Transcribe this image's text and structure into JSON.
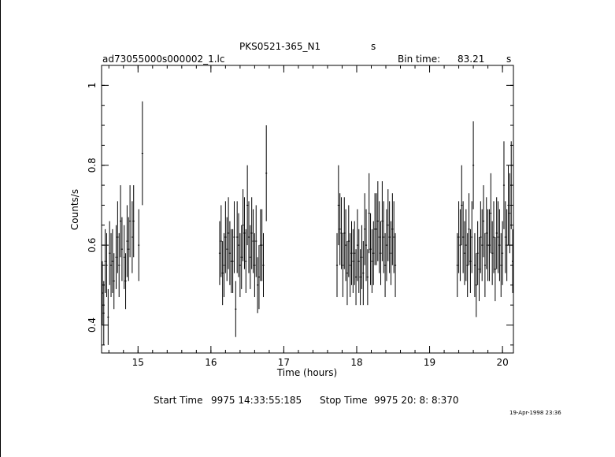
{
  "header": {
    "source": "PKS0521-365_N1",
    "units_flag": "s",
    "file": "ad73055000s000002_1.lc",
    "bin_label": "Bin time:",
    "bin_value": "83.21",
    "bin_unit": "s"
  },
  "footer": {
    "start_label": "Start Time",
    "start_value": "9975 14:33:55:185",
    "stop_label": "Stop Time",
    "stop_value": "9975 20: 8: 8:370",
    "stamp": "19-Apr-1998 23:36"
  },
  "chart_data": {
    "type": "scatter",
    "xlabel": "Time (hours)",
    "ylabel": "Counts/s",
    "xlim": [
      14.5,
      20.15
    ],
    "ylim": [
      0.33,
      1.05
    ],
    "xticks": [
      15,
      16,
      17,
      18,
      19,
      20
    ],
    "yticks": [
      0.4,
      0.6,
      0.8,
      1
    ],
    "grid": false,
    "series": [
      {
        "x": [
          14.51,
          14.53,
          14.55,
          14.57,
          14.59,
          14.61,
          14.63,
          14.65,
          14.67,
          14.7,
          14.72,
          14.74,
          14.76,
          14.78,
          14.81,
          14.83,
          14.85,
          14.87,
          14.89,
          14.92,
          14.94,
          15.01,
          15.06
        ],
        "y": [
          0.48,
          0.43,
          0.56,
          0.55,
          0.42,
          0.58,
          0.55,
          0.56,
          0.51,
          0.57,
          0.62,
          0.55,
          0.66,
          0.59,
          0.57,
          0.51,
          0.61,
          0.59,
          0.66,
          0.62,
          0.66,
          0.6,
          0.83
        ],
        "err": [
          0.08,
          0.08,
          0.08,
          0.08,
          0.07,
          0.08,
          0.08,
          0.08,
          0.07,
          0.08,
          0.09,
          0.08,
          0.09,
          0.08,
          0.08,
          0.07,
          0.09,
          0.08,
          0.09,
          0.09,
          0.09,
          0.09,
          0.13
        ]
      },
      {
        "x": [
          16.12,
          16.14,
          16.16,
          16.18,
          16.2,
          16.22,
          16.24,
          16.26,
          16.28,
          16.3,
          16.32,
          16.34,
          16.36,
          16.38,
          16.4,
          16.42,
          16.44,
          16.46,
          16.48,
          16.5,
          16.52,
          16.54,
          16.56,
          16.58,
          16.6,
          16.62,
          16.64,
          16.66,
          16.68,
          16.7,
          16.72,
          16.76
        ],
        "y": [
          0.58,
          0.61,
          0.53,
          0.55,
          0.62,
          0.59,
          0.63,
          0.58,
          0.56,
          0.56,
          0.62,
          0.44,
          0.62,
          0.6,
          0.55,
          0.57,
          0.65,
          0.63,
          0.56,
          0.7,
          0.62,
          0.57,
          0.63,
          0.61,
          0.55,
          0.61,
          0.5,
          0.52,
          0.6,
          0.6,
          0.55,
          0.78
        ],
        "err": [
          0.08,
          0.09,
          0.08,
          0.08,
          0.09,
          0.08,
          0.09,
          0.08,
          0.08,
          0.08,
          0.09,
          0.07,
          0.09,
          0.08,
          0.08,
          0.08,
          0.09,
          0.09,
          0.08,
          0.1,
          0.09,
          0.08,
          0.09,
          0.08,
          0.08,
          0.09,
          0.07,
          0.08,
          0.09,
          0.09,
          0.08,
          0.12
        ]
      },
      {
        "x": [
          17.73,
          17.75,
          17.77,
          17.79,
          17.81,
          17.83,
          17.85,
          17.87,
          17.89,
          17.91,
          17.93,
          17.95,
          17.97,
          17.99,
          18.01,
          18.03,
          18.05,
          18.07,
          18.09,
          18.11,
          18.13,
          18.15,
          18.17,
          18.19,
          18.21,
          18.23,
          18.25,
          18.27,
          18.29,
          18.31,
          18.33,
          18.35,
          18.37,
          18.39,
          18.41,
          18.43,
          18.45,
          18.47,
          18.49,
          18.51,
          18.53
        ],
        "y": [
          0.55,
          0.7,
          0.64,
          0.63,
          0.55,
          0.63,
          0.6,
          0.53,
          0.61,
          0.55,
          0.58,
          0.56,
          0.58,
          0.52,
          0.6,
          0.56,
          0.52,
          0.57,
          0.53,
          0.64,
          0.6,
          0.52,
          0.68,
          0.59,
          0.56,
          0.58,
          0.64,
          0.64,
          0.66,
          0.62,
          0.58,
          0.66,
          0.62,
          0.55,
          0.6,
          0.65,
          0.62,
          0.58,
          0.64,
          0.62,
          0.55
        ],
        "err": [
          0.08,
          0.1,
          0.09,
          0.09,
          0.08,
          0.09,
          0.09,
          0.08,
          0.09,
          0.08,
          0.08,
          0.08,
          0.08,
          0.07,
          0.09,
          0.08,
          0.07,
          0.08,
          0.08,
          0.09,
          0.09,
          0.07,
          0.1,
          0.09,
          0.08,
          0.08,
          0.09,
          0.09,
          0.1,
          0.09,
          0.08,
          0.1,
          0.09,
          0.08,
          0.09,
          0.09,
          0.09,
          0.08,
          0.09,
          0.09,
          0.08
        ]
      },
      {
        "x": [
          19.38,
          19.4,
          19.42,
          19.44,
          19.46,
          19.48,
          19.5,
          19.52,
          19.54,
          19.56,
          19.58,
          19.6,
          19.62,
          19.64,
          19.66,
          19.68,
          19.7,
          19.72,
          19.74,
          19.76,
          19.78,
          19.8,
          19.82,
          19.84,
          19.86,
          19.88,
          19.9,
          19.92,
          19.94,
          19.96,
          19.98,
          20.0,
          20.02,
          20.04,
          20.06,
          20.08,
          20.1,
          20.12,
          20.14
        ],
        "y": [
          0.55,
          0.62,
          0.6,
          0.7,
          0.62,
          0.58,
          0.6,
          0.55,
          0.64,
          0.56,
          0.62,
          0.8,
          0.55,
          0.5,
          0.58,
          0.54,
          0.62,
          0.6,
          0.66,
          0.55,
          0.63,
          0.6,
          0.6,
          0.68,
          0.58,
          0.62,
          0.54,
          0.63,
          0.62,
          0.6,
          0.55,
          0.58,
          0.75,
          0.62,
          0.6,
          0.7,
          0.68,
          0.75,
          0.56
        ],
        "err": [
          0.08,
          0.09,
          0.09,
          0.1,
          0.09,
          0.08,
          0.09,
          0.08,
          0.09,
          0.08,
          0.09,
          0.11,
          0.08,
          0.08,
          0.08,
          0.08,
          0.09,
          0.09,
          0.09,
          0.08,
          0.09,
          0.09,
          0.09,
          0.1,
          0.08,
          0.09,
          0.08,
          0.09,
          0.09,
          0.09,
          0.08,
          0.08,
          0.11,
          0.09,
          0.09,
          0.1,
          0.1,
          0.11,
          0.08
        ]
      }
    ]
  }
}
